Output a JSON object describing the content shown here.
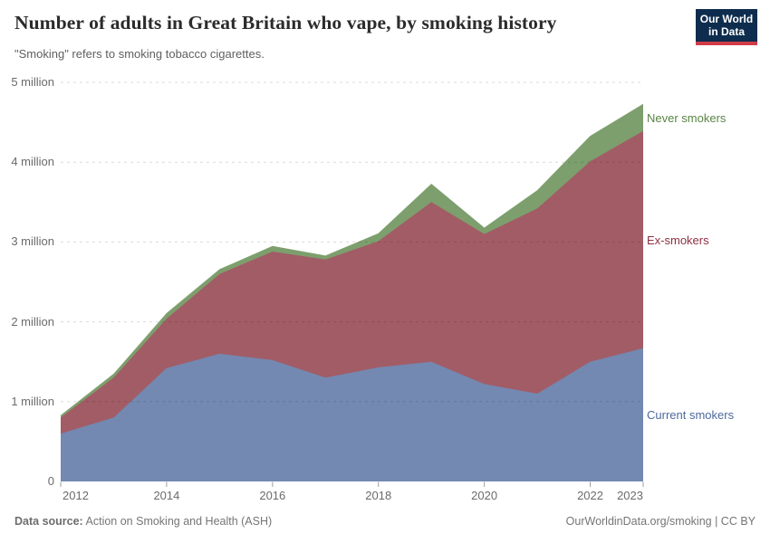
{
  "header": {
    "title": "Number of adults in Great Britain who vape, by smoking history",
    "subtitle": "\"Smoking\" refers to smoking tobacco cigarettes.",
    "logo": {
      "line1": "Our World",
      "line2": "in Data",
      "bg": "#0E2D4E",
      "accent": "#D13B47"
    }
  },
  "chart_data": {
    "type": "area",
    "stacked": true,
    "title": "Number of adults in Great Britain who vape, by smoking history",
    "x": [
      2012,
      2013,
      2014,
      2015,
      2016,
      2017,
      2018,
      2019,
      2020,
      2021,
      2022,
      2023
    ],
    "series": [
      {
        "name": "Current smokers",
        "unit": "million",
        "fill": "#7389B1",
        "label_color": "#4C6A9C",
        "values": [
          0.6,
          0.8,
          1.42,
          1.6,
          1.52,
          1.3,
          1.43,
          1.5,
          1.22,
          1.1,
          1.5,
          1.67
        ]
      },
      {
        "name": "Ex-smokers",
        "unit": "million",
        "fill": "#A25C66",
        "label_color": "#8E2F41",
        "values": [
          0.2,
          0.5,
          0.62,
          1.0,
          1.36,
          1.48,
          1.58,
          2.0,
          1.88,
          2.32,
          2.51,
          2.72
        ]
      },
      {
        "name": "Never smokers",
        "unit": "million",
        "fill": "#7D9F6D",
        "label_color": "#588444",
        "values": [
          0.03,
          0.05,
          0.07,
          0.06,
          0.07,
          0.05,
          0.1,
          0.23,
          0.08,
          0.23,
          0.32,
          0.34
        ]
      }
    ],
    "ylim": [
      0,
      5
    ],
    "yticks": [
      {
        "v": 0,
        "label": "0"
      },
      {
        "v": 1,
        "label": "1 million"
      },
      {
        "v": 2,
        "label": "2 million"
      },
      {
        "v": 3,
        "label": "3 million"
      },
      {
        "v": 4,
        "label": "4 million"
      },
      {
        "v": 5,
        "label": "5 million"
      }
    ],
    "xticks": [
      2012,
      2014,
      2016,
      2018,
      2020,
      2022,
      2023
    ],
    "grid": "horizontal-dashed",
    "legend_position": "right-of-plot"
  },
  "footer": {
    "source_label": "Data source:",
    "source_value": " Action on Smoking and Health (ASH)",
    "rights": "OurWorldinData.org/smoking | CC BY"
  }
}
